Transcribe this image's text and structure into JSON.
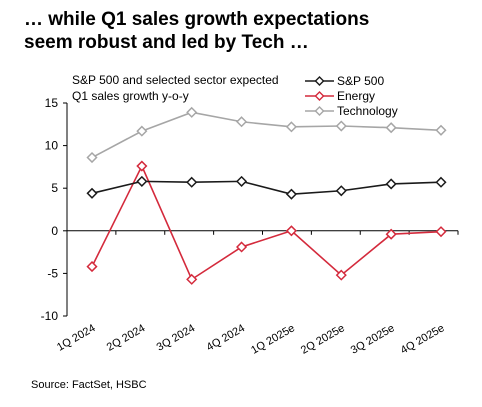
{
  "title": "… while Q1 sales growth expectations\nseem robust and led by Tech …",
  "source": "Source: FactSet, HSBC",
  "colors": {
    "sp500": "#1a1a1a",
    "energy": "#d42a3c",
    "technology": "#a6a6a6",
    "axis": "#000000"
  },
  "chart_data": {
    "type": "line",
    "annotation": [
      "S&P 500 and selected sector expected",
      "Q1 sales growth y-o-y"
    ],
    "categories": [
      "1Q 2024",
      "2Q 2024",
      "3Q 2024",
      "4Q 2024",
      "1Q 2025e",
      "2Q 2025e",
      "3Q 2025e",
      "4Q 2025e"
    ],
    "y_ticks": [
      -10,
      -5,
      0,
      5,
      10,
      15
    ],
    "ylim": [
      -10,
      15
    ],
    "grid": false,
    "legend_position": "top-right",
    "series": [
      {
        "name": "S&P 500",
        "color": "#1a1a1a",
        "values": [
          4.4,
          5.8,
          5.7,
          5.8,
          4.3,
          4.7,
          5.5,
          5.7
        ]
      },
      {
        "name": "Energy",
        "color": "#d42a3c",
        "values": [
          -4.2,
          7.6,
          -5.7,
          -1.9,
          0.0,
          -5.2,
          -0.4,
          -0.1
        ]
      },
      {
        "name": "Technology",
        "color": "#a6a6a6",
        "values": [
          8.6,
          11.7,
          13.9,
          12.8,
          12.2,
          12.3,
          12.1,
          11.8
        ]
      }
    ]
  }
}
